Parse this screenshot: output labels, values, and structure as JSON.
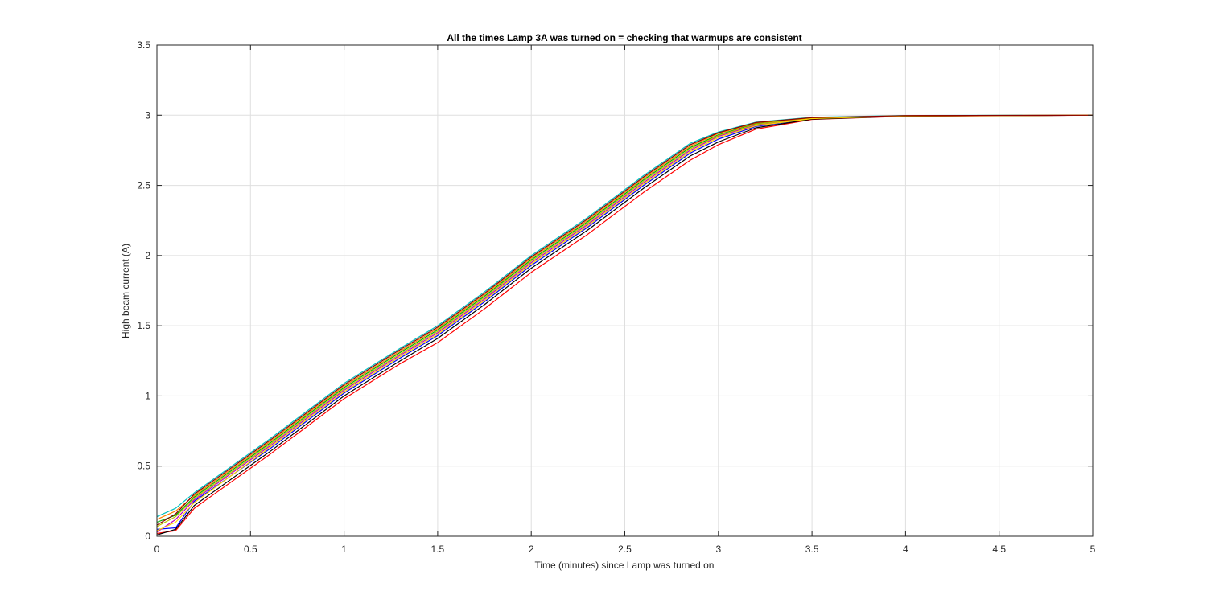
{
  "chart_data": {
    "type": "line",
    "title": "All the times Lamp 3A was turned on = checking that warmups are consistent",
    "xlabel": "Time (minutes) since Lamp was turned on",
    "ylabel": "High beam current (A)",
    "xlim": [
      0,
      5
    ],
    "ylim": [
      0,
      3.5
    ],
    "xticks": [
      0,
      0.5,
      1,
      1.5,
      2,
      2.5,
      3,
      3.5,
      4,
      4.5,
      5
    ],
    "xtick_labels": [
      "0",
      "0.5",
      "1",
      "1.5",
      "2",
      "2.5",
      "3",
      "3.5",
      "4",
      "4.5",
      "5"
    ],
    "yticks": [
      0,
      0.5,
      1,
      1.5,
      2,
      2.5,
      3,
      3.5
    ],
    "ytick_labels": [
      "0",
      "0.5",
      "1",
      "1.5",
      "2",
      "2.5",
      "3",
      "3.5"
    ],
    "grid": true,
    "legend": "none",
    "colors": [
      "#0000ff",
      "#ff0000",
      "#00aa00",
      "#00bfbf",
      "#bf00bf",
      "#bfbf00",
      "#000000",
      "#ff8000",
      "#ffd700",
      "#8b0000"
    ],
    "series": [
      {
        "x": [
          0,
          0.1,
          0.2,
          0.6,
          1.0,
          1.3,
          1.5,
          1.75,
          2.0,
          2.3,
          2.6,
          2.85,
          3.0,
          3.2,
          3.5,
          4.0,
          5.0
        ],
        "values": [
          0.05,
          0.06,
          0.25,
          0.62,
          1.02,
          1.27,
          1.43,
          1.67,
          1.93,
          2.2,
          2.5,
          2.73,
          2.83,
          2.92,
          2.975,
          2.995,
          3.0
        ]
      },
      {
        "x": [
          0,
          0.1,
          0.2,
          0.6,
          1.0,
          1.3,
          1.5,
          1.75,
          2.0,
          2.3,
          2.6,
          2.85,
          3.0,
          3.2,
          3.5,
          4.0,
          5.0
        ],
        "values": [
          0.02,
          0.04,
          0.2,
          0.58,
          0.98,
          1.23,
          1.38,
          1.62,
          1.88,
          2.15,
          2.45,
          2.68,
          2.79,
          2.9,
          2.97,
          2.993,
          3.0
        ]
      },
      {
        "x": [
          0,
          0.1,
          0.2,
          0.6,
          1.0,
          1.3,
          1.5,
          1.75,
          2.0,
          2.3,
          2.6,
          2.85,
          3.0,
          3.2,
          3.5,
          4.0,
          5.0
        ],
        "values": [
          0.1,
          0.15,
          0.28,
          0.66,
          1.06,
          1.31,
          1.47,
          1.71,
          1.97,
          2.24,
          2.54,
          2.77,
          2.86,
          2.94,
          2.98,
          2.997,
          3.0
        ]
      },
      {
        "x": [
          0,
          0.1,
          0.2,
          0.6,
          1.0,
          1.3,
          1.5,
          1.75,
          2.0,
          2.3,
          2.6,
          2.85,
          3.0,
          3.2,
          3.5,
          4.0,
          5.0
        ],
        "values": [
          0.14,
          0.2,
          0.31,
          0.69,
          1.09,
          1.34,
          1.5,
          1.74,
          2.0,
          2.27,
          2.57,
          2.8,
          2.88,
          2.95,
          2.985,
          2.998,
          3.0
        ]
      },
      {
        "x": [
          0,
          0.1,
          0.2,
          0.6,
          1.0,
          1.3,
          1.5,
          1.75,
          2.0,
          2.3,
          2.6,
          2.85,
          3.0,
          3.2,
          3.5,
          4.0,
          5.0
        ],
        "values": [
          0.03,
          0.12,
          0.26,
          0.64,
          1.04,
          1.29,
          1.45,
          1.69,
          1.95,
          2.22,
          2.52,
          2.75,
          2.85,
          2.93,
          2.978,
          2.996,
          3.0
        ]
      },
      {
        "x": [
          0,
          0.1,
          0.2,
          0.6,
          1.0,
          1.3,
          1.5,
          1.75,
          2.0,
          2.3,
          2.6,
          2.85,
          3.0,
          3.2,
          3.5,
          4.0,
          5.0
        ],
        "values": [
          0.07,
          0.14,
          0.27,
          0.65,
          1.05,
          1.3,
          1.46,
          1.7,
          1.96,
          2.23,
          2.53,
          2.76,
          2.855,
          2.935,
          2.98,
          2.996,
          3.0
        ]
      },
      {
        "x": [
          0,
          0.1,
          0.2,
          0.6,
          1.0,
          1.3,
          1.5,
          1.75,
          2.0,
          2.3,
          2.6,
          2.85,
          3.0,
          3.2,
          3.5,
          4.0,
          5.0
        ],
        "values": [
          0.01,
          0.05,
          0.22,
          0.6,
          1.0,
          1.25,
          1.41,
          1.65,
          1.91,
          2.18,
          2.48,
          2.71,
          2.81,
          2.91,
          2.972,
          2.994,
          3.0
        ]
      },
      {
        "x": [
          0,
          0.1,
          0.2,
          0.6,
          1.0,
          1.3,
          1.5,
          1.75,
          2.0,
          2.3,
          2.6,
          2.85,
          3.0,
          3.2,
          3.5,
          4.0,
          5.0
        ],
        "values": [
          0.12,
          0.18,
          0.29,
          0.67,
          1.07,
          1.32,
          1.48,
          1.72,
          1.98,
          2.25,
          2.55,
          2.78,
          2.87,
          2.945,
          2.982,
          2.997,
          3.0
        ]
      },
      {
        "x": [
          0,
          0.1,
          0.2,
          0.6,
          1.0,
          1.3,
          1.5,
          1.75,
          2.0,
          2.3,
          2.6,
          2.85,
          3.0,
          3.2,
          3.5,
          4.0,
          5.0
        ],
        "values": [
          0.04,
          0.1,
          0.24,
          0.63,
          1.03,
          1.28,
          1.44,
          1.68,
          1.94,
          2.21,
          2.51,
          2.74,
          2.84,
          2.925,
          2.976,
          2.995,
          3.0
        ]
      },
      {
        "x": [
          0,
          0.1,
          0.2,
          0.6,
          1.0,
          1.3,
          1.5,
          1.75,
          2.0,
          2.3,
          2.6,
          2.85,
          3.0,
          3.2,
          3.5,
          4.0,
          5.0
        ],
        "values": [
          0.08,
          0.16,
          0.3,
          0.68,
          1.08,
          1.33,
          1.49,
          1.73,
          1.99,
          2.26,
          2.56,
          2.79,
          2.875,
          2.948,
          2.983,
          2.997,
          3.0
        ]
      }
    ]
  }
}
